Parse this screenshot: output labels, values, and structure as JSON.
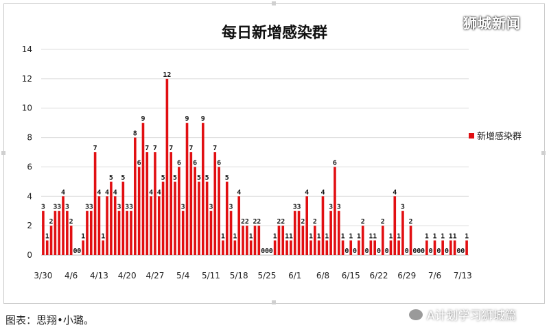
{
  "watermark_top": "狮城新闻",
  "caption": "图表：思翔•小璐。",
  "watermark_bottom": "A计划学习狮城篇",
  "chart_data": {
    "type": "bar",
    "title": "每日新增感染群",
    "xlabel": "",
    "ylabel": "",
    "ylim": [
      0,
      14
    ],
    "yticks": [
      0,
      2,
      4,
      6,
      8,
      10,
      12,
      14
    ],
    "grid": true,
    "legend": "right",
    "series": [
      {
        "name": "新增感染群",
        "color": "#e10f12",
        "values": [
          3,
          1,
          2,
          3,
          3,
          4,
          3,
          2,
          0,
          0,
          1,
          3,
          3,
          7,
          4,
          1,
          4,
          5,
          4,
          3,
          5,
          3,
          3,
          8,
          6,
          9,
          7,
          4,
          7,
          4,
          5,
          12,
          7,
          5,
          6,
          3,
          9,
          7,
          6,
          5,
          9,
          5,
          3,
          7,
          6,
          1,
          5,
          3,
          1,
          4,
          2,
          2,
          1,
          2,
          2,
          0,
          0,
          0,
          1,
          2,
          2,
          1,
          1,
          3,
          3,
          2,
          4,
          1,
          2,
          1,
          4,
          1,
          3,
          6,
          3,
          1,
          0,
          1,
          0,
          1,
          2,
          0,
          1,
          1,
          0,
          2,
          0,
          1,
          4,
          1,
          3,
          0,
          2,
          0,
          0,
          0,
          1,
          0,
          1,
          0,
          1,
          0,
          1,
          1,
          0,
          0,
          1
        ]
      }
    ],
    "x_tick_labels": [
      "3/30",
      "4/6",
      "4/13",
      "4/20",
      "4/27",
      "5/4",
      "5/11",
      "5/18",
      "5/25",
      "6/1",
      "6/8",
      "6/15",
      "6/22",
      "6/29",
      "7/6",
      "7/13"
    ]
  }
}
